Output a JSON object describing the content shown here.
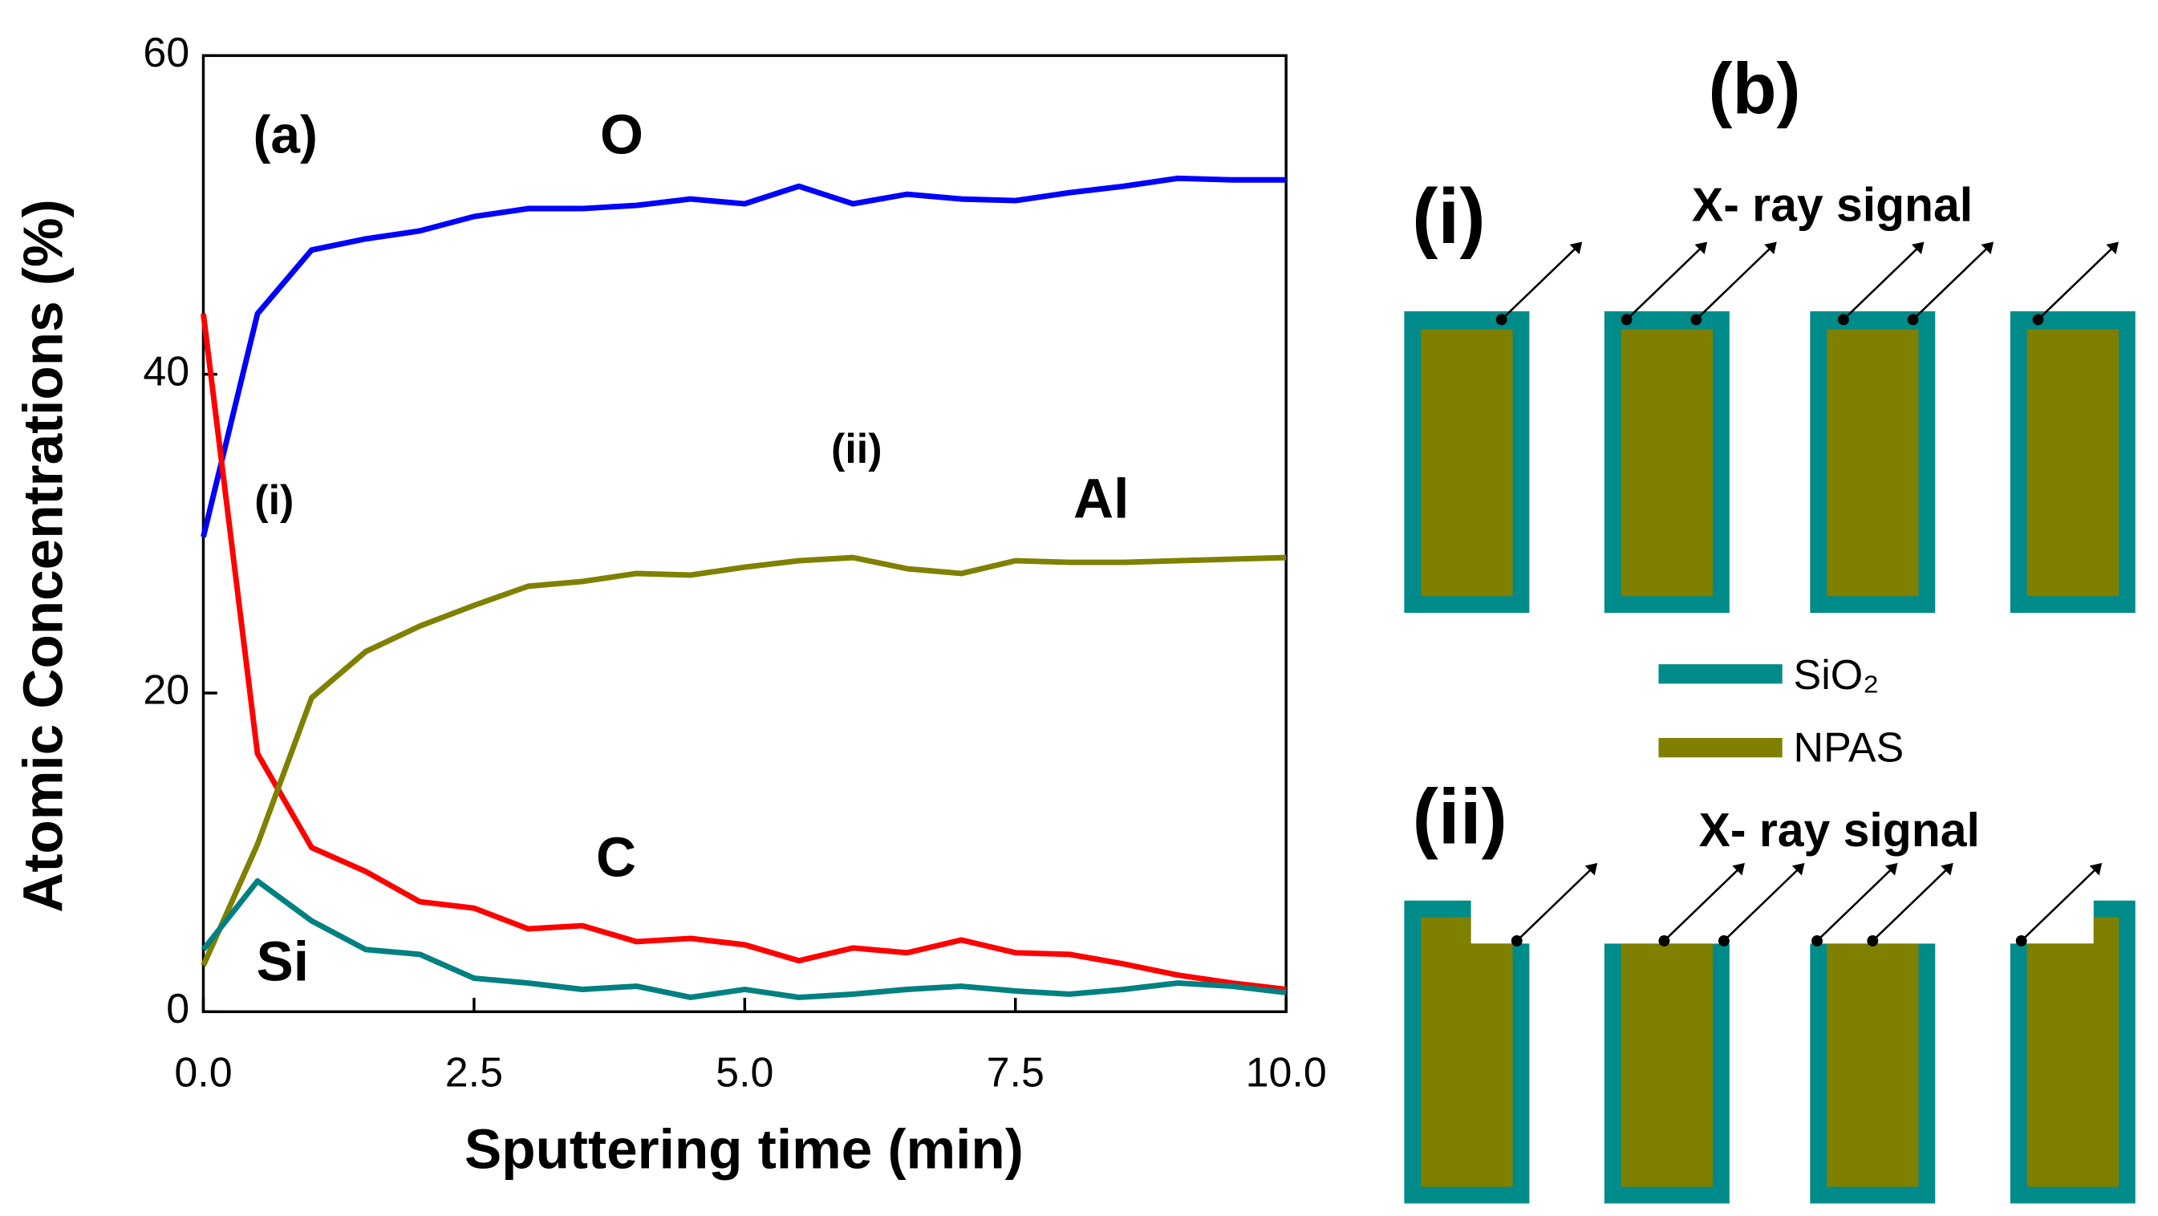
{
  "chart_data": {
    "type": "line",
    "annotations": [
      "(a)",
      "(i)",
      "(ii)"
    ],
    "x_label": "Sputtering time (min)",
    "y_label": "Atomic Concentrations (%)",
    "x": [
      0,
      0.5,
      1,
      1.5,
      2,
      2.5,
      3,
      3.5,
      4,
      4.5,
      5,
      5.5,
      6,
      6.5,
      7,
      7.5,
      8,
      8.5,
      9,
      9.5,
      10
    ],
    "series": [
      {
        "name": "O",
        "color": "#0000ff",
        "values": [
          29.8,
          43.8,
          47.8,
          48.5,
          49,
          49.9,
          50.4,
          50.4,
          50.6,
          51,
          50.7,
          51.8,
          50.7,
          51.3,
          51,
          50.9,
          51.4,
          51.8,
          52.3,
          52.2,
          52.2
        ]
      },
      {
        "name": "C",
        "color": "#ff0000",
        "values": [
          43.8,
          16.2,
          10.3,
          8.8,
          6.9,
          6.5,
          5.2,
          5.4,
          4.4,
          4.6,
          4.2,
          3.2,
          4,
          3.7,
          4.5,
          3.7,
          3.6,
          3,
          2.3,
          1.8,
          1.4
        ]
      },
      {
        "name": "Al",
        "color": "#808000",
        "values": [
          2.9,
          10.5,
          19.7,
          22.6,
          24.2,
          25.5,
          26.7,
          27,
          27.5,
          27.4,
          27.9,
          28.3,
          28.5,
          27.8,
          27.5,
          28.3,
          28.2,
          28.2,
          28.3,
          28.4,
          28.5
        ]
      },
      {
        "name": "Si",
        "color": "#008080",
        "values": [
          3.9,
          8.2,
          5.7,
          3.9,
          3.6,
          2.1,
          1.8,
          1.4,
          1.6,
          0.9,
          1.4,
          0.9,
          1.1,
          1.4,
          1.6,
          1.3,
          1.1,
          1.4,
          1.8,
          1.6,
          1.2
        ]
      }
    ],
    "xlim": [
      0,
      10
    ],
    "xticks": [
      {
        "value": 0,
        "label": "0.0"
      },
      {
        "value": 2.5,
        "label": "2.5"
      },
      {
        "value": 5,
        "label": "5.0"
      },
      {
        "value": 7.5,
        "label": "7.5"
      },
      {
        "value": 10,
        "label": "10.0"
      }
    ],
    "ylim": [
      0,
      60
    ],
    "yticks": [
      0,
      20,
      40,
      60
    ]
  },
  "diagram": {
    "title": "(b)",
    "panels": [
      {
        "label": "(i)",
        "signal_label": "X- ray signal"
      },
      {
        "label": "(ii)",
        "signal_label": "X- ray signal"
      }
    ],
    "legend": [
      {
        "name": "SiO₂",
        "color": "#008b8b"
      },
      {
        "name": "NPAS",
        "color": "#7f7f00"
      }
    ]
  }
}
